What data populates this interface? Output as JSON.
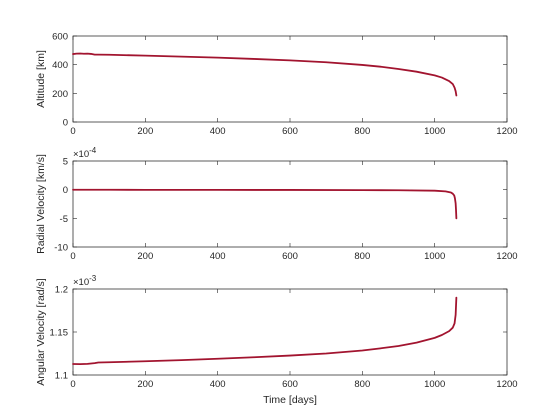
{
  "colors": {
    "line": "#a2142f",
    "axis": "#262626",
    "background": "#ffffff"
  },
  "chart_data": [
    {
      "type": "line",
      "xlabel": "",
      "ylabel": "Altitude [km]",
      "xlim": [
        0,
        1200
      ],
      "ylim": [
        0,
        600
      ],
      "xticks": [
        "0",
        "200",
        "400",
        "600",
        "800",
        "1000",
        "1200"
      ],
      "yticks": [
        "0",
        "200",
        "400",
        "600"
      ],
      "exponent": "",
      "grid": false,
      "series": [
        {
          "x": [
            0,
            10,
            20,
            30,
            40,
            50,
            60,
            70,
            100,
            200,
            300,
            400,
            500,
            600,
            700,
            800,
            850,
            900,
            950,
            1000,
            1020,
            1040,
            1050,
            1055,
            1058,
            1060
          ],
          "y": [
            474,
            477,
            478,
            476,
            477,
            475,
            470,
            470,
            469,
            463,
            456,
            449,
            440,
            430,
            417,
            398,
            386,
            370,
            351,
            325,
            310,
            286,
            265,
            240,
            215,
            185
          ]
        }
      ]
    },
    {
      "type": "line",
      "xlabel": "",
      "ylabel": "Radial Velocity [km/s]",
      "xlim": [
        0,
        1200
      ],
      "ylim": [
        -10,
        5
      ],
      "xticks": [
        "0",
        "200",
        "400",
        "600",
        "800",
        "1000",
        "1200"
      ],
      "yticks": [
        "-10",
        "-5",
        "0",
        "5"
      ],
      "exponent": "-4",
      "grid": false,
      "series": [
        {
          "x": [
            0,
            100,
            200,
            400,
            600,
            800,
            900,
            1000,
            1030,
            1045,
            1050,
            1054,
            1056,
            1058,
            1059,
            1060
          ],
          "y": [
            -0.02,
            -0.02,
            -0.03,
            -0.04,
            -0.05,
            -0.08,
            -0.1,
            -0.18,
            -0.3,
            -0.5,
            -0.7,
            -1.0,
            -1.5,
            -2.4,
            -3.5,
            -5.0
          ]
        }
      ]
    },
    {
      "type": "line",
      "xlabel": "Time [days]",
      "ylabel": "Angular Velocity [rad/s]",
      "xlim": [
        0,
        1200
      ],
      "ylim": [
        1.1,
        1.2
      ],
      "xticks": [
        "0",
        "200",
        "400",
        "600",
        "800",
        "1000",
        "1200"
      ],
      "yticks": [
        "1.1",
        "1.15",
        "1.2"
      ],
      "exponent": "-3",
      "grid": false,
      "series": [
        {
          "x": [
            0,
            20,
            40,
            60,
            70,
            100,
            200,
            300,
            400,
            500,
            600,
            700,
            800,
            850,
            900,
            950,
            1000,
            1020,
            1040,
            1050,
            1055,
            1058,
            1060
          ],
          "y": [
            1.1128,
            1.1126,
            1.1129,
            1.1138,
            1.1145,
            1.1148,
            1.116,
            1.1173,
            1.1189,
            1.1206,
            1.1226,
            1.125,
            1.1285,
            1.131,
            1.1337,
            1.1376,
            1.1432,
            1.1465,
            1.151,
            1.155,
            1.16,
            1.17,
            1.19
          ]
        }
      ]
    }
  ]
}
